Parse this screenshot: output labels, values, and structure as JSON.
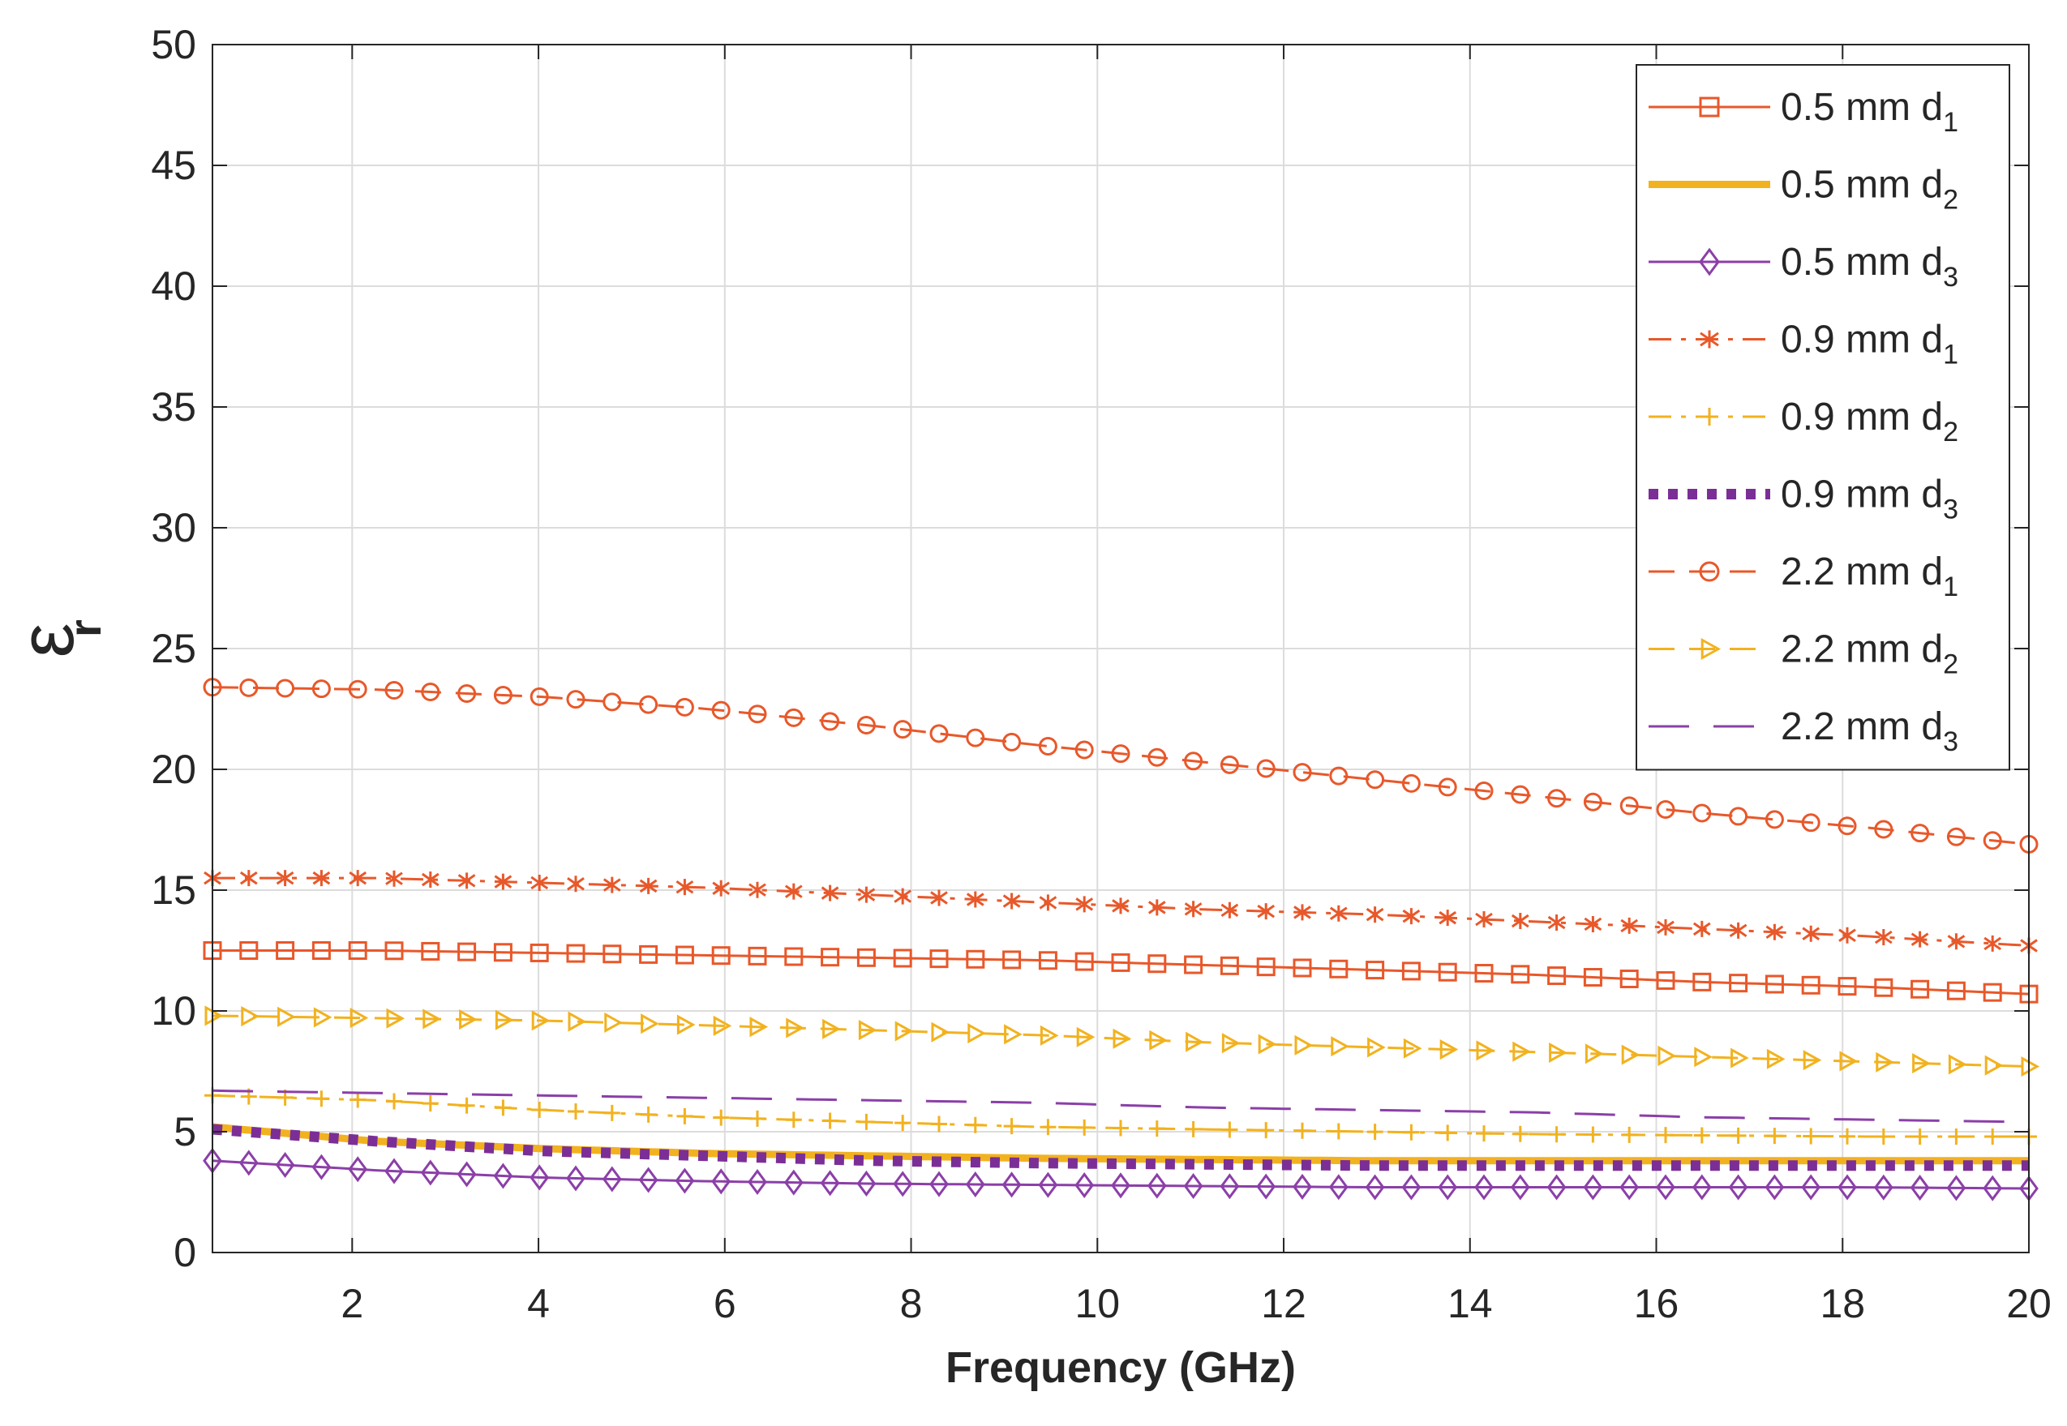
{
  "chart_data": {
    "type": "line",
    "title": "",
    "xlabel": "Frequency (GHz)",
    "ylabel_symbol": "ε",
    "ylabel_subscript": "r",
    "xlim": [
      0.5,
      20
    ],
    "ylim": [
      0,
      50
    ],
    "xticks": [
      2,
      4,
      6,
      8,
      10,
      12,
      14,
      16,
      18,
      20
    ],
    "yticks": [
      0,
      5,
      10,
      15,
      20,
      25,
      30,
      35,
      40,
      45,
      50
    ],
    "grid": true,
    "legend_position": "top-right",
    "x_start": 0.5,
    "x_end": 20,
    "series": [
      {
        "name": "0.5 mm d1",
        "label_main": "0.5 mm d",
        "label_sub": "1",
        "color": "#e8582a",
        "marker": "square",
        "line": "solid",
        "values": [
          12.5,
          12.5,
          12.4,
          12.3,
          12.2,
          12.1,
          11.9,
          11.7,
          11.5,
          11.2,
          11.0,
          10.7
        ]
      },
      {
        "name": "0.5 mm d2",
        "label_main": "0.5 mm d",
        "label_sub": "2",
        "color": "#f2b21f",
        "marker": "none",
        "line": "thick",
        "values": [
          5.2,
          4.6,
          4.3,
          4.1,
          4.0,
          3.9,
          3.85,
          3.8,
          3.8,
          3.8,
          3.8,
          3.8
        ]
      },
      {
        "name": "0.5 mm d3",
        "label_main": "0.5 mm d",
        "label_sub": "3",
        "color": "#8b3fa8",
        "marker": "diamond",
        "line": "solid",
        "values": [
          3.8,
          3.4,
          3.1,
          2.95,
          2.85,
          2.8,
          2.75,
          2.7,
          2.7,
          2.7,
          2.7,
          2.65
        ]
      },
      {
        "name": "0.9 mm d1",
        "label_main": "0.9 mm d",
        "label_sub": "1",
        "color": "#e8582a",
        "marker": "asterisk",
        "line": "dashdot",
        "values": [
          15.5,
          15.5,
          15.3,
          15.1,
          14.8,
          14.5,
          14.2,
          14.0,
          13.7,
          13.4,
          13.1,
          12.7
        ]
      },
      {
        "name": "0.9 mm d2",
        "label_main": "0.9 mm d",
        "label_sub": "2",
        "color": "#f2b21f",
        "marker": "plus",
        "line": "dashdot",
        "values": [
          6.5,
          6.3,
          5.9,
          5.6,
          5.4,
          5.2,
          5.1,
          5.0,
          4.9,
          4.85,
          4.8,
          4.8
        ]
      },
      {
        "name": "0.9 mm d3",
        "label_main": "0.9 mm d",
        "label_sub": "3",
        "color": "#7b2f96",
        "marker": "none",
        "line": "dotted",
        "values": [
          5.1,
          4.6,
          4.2,
          4.0,
          3.8,
          3.7,
          3.65,
          3.6,
          3.6,
          3.6,
          3.6,
          3.6
        ]
      },
      {
        "name": "2.2 mm d1",
        "label_main": "2.2 mm  d",
        "label_sub": "1",
        "color": "#e8582a",
        "marker": "circle",
        "line": "dashed",
        "values": [
          23.4,
          23.3,
          23.0,
          22.5,
          21.8,
          21.0,
          20.3,
          19.6,
          18.9,
          18.2,
          17.6,
          16.9
        ]
      },
      {
        "name": "2.2 mm d2",
        "label_main": "2.2 mm d",
        "label_sub": "2",
        "color": "#f2b21f",
        "marker": "triangle-right",
        "line": "dashed",
        "values": [
          9.8,
          9.7,
          9.6,
          9.4,
          9.2,
          9.0,
          8.7,
          8.5,
          8.3,
          8.1,
          7.9,
          7.7
        ]
      },
      {
        "name": "2.2 mm d3",
        "label_main": "2.2 mm d",
        "label_sub": "3",
        "color": "#8b3fa8",
        "marker": "none",
        "line": "longdash",
        "values": [
          6.7,
          6.6,
          6.5,
          6.4,
          6.3,
          6.2,
          6.0,
          5.9,
          5.8,
          5.6,
          5.5,
          5.4
        ]
      }
    ]
  }
}
